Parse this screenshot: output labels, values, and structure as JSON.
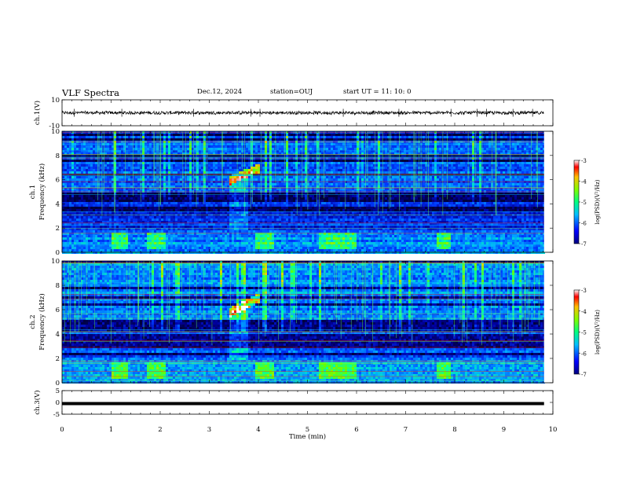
{
  "header": {
    "title": "VLF Spectra",
    "date": "Dec.12, 2024",
    "station": "station=OUJ",
    "start": "start  UT =   11: 10: 0"
  },
  "colors": {
    "spectrogram_low": "#000080",
    "spectrogram_mid": "#00ff80",
    "spectrogram_high": "#ff0000",
    "waveform": "#000000"
  },
  "chart_data": [
    {
      "id": "ch1-waveform",
      "type": "line",
      "ylabel": "ch.1(V)",
      "xlim": [
        0,
        10
      ],
      "ylim": [
        -10,
        10
      ],
      "yticks": [
        "10",
        "-10"
      ],
      "signal_range": [
        -1.5,
        1.5
      ],
      "x_extent": [
        0,
        9.82
      ]
    },
    {
      "id": "ch1-spectrogram",
      "type": "heatmap",
      "ylabel": "ch.1",
      "ylabel2": "Frequency (kHz)",
      "xlim": [
        0,
        10
      ],
      "ylim": [
        0,
        10
      ],
      "yticks": [
        "0",
        "2",
        "4",
        "6",
        "8",
        "10"
      ],
      "x_extent": [
        0,
        9.82
      ],
      "colorbar": {
        "label": "log(PSD)(V²/Hz)",
        "range": [
          -7,
          -3
        ],
        "ticks": [
          "-3",
          "-4",
          "-5",
          "-6",
          "-7"
        ]
      },
      "features": [
        {
          "name": "rising-tone",
          "t_start": 3.4,
          "t_end": 4.0,
          "f_start": 6.0,
          "f_end": 7.0
        },
        {
          "name": "low-freq-band",
          "f_low": 0.2,
          "f_high": 1.8
        }
      ]
    },
    {
      "id": "ch2-spectrogram",
      "type": "heatmap",
      "ylabel": "ch.2",
      "ylabel2": "Frequency (kHz)",
      "xlim": [
        0,
        10
      ],
      "ylim": [
        0,
        10
      ],
      "yticks": [
        "0",
        "2",
        "4",
        "6",
        "8",
        "10"
      ],
      "x_extent": [
        0,
        9.82
      ],
      "colorbar": {
        "label": "log(PSD)(V²/Hz)",
        "range": [
          -7,
          -3
        ],
        "ticks": [
          "-3",
          "-4",
          "-5",
          "-6",
          "-7"
        ]
      },
      "features": [
        {
          "name": "rising-tone",
          "t_start": 3.4,
          "t_end": 4.0,
          "f_start": 5.8,
          "f_end": 7.0
        },
        {
          "name": "low-freq-band",
          "f_low": 0.2,
          "f_high": 1.6
        }
      ]
    },
    {
      "id": "ch3-waveform",
      "type": "line",
      "ylabel": "ch.3(V)",
      "xlim": [
        0,
        10
      ],
      "ylim": [
        -5,
        5
      ],
      "yticks": [
        "5",
        "0",
        "-5"
      ],
      "constant_value": -0.5,
      "x_extent": [
        0,
        9.82
      ]
    }
  ],
  "xaxis": {
    "label": "Time (min)",
    "ticks": [
      "0",
      "1",
      "2",
      "3",
      "4",
      "5",
      "6",
      "7",
      "8",
      "9",
      "10"
    ]
  }
}
